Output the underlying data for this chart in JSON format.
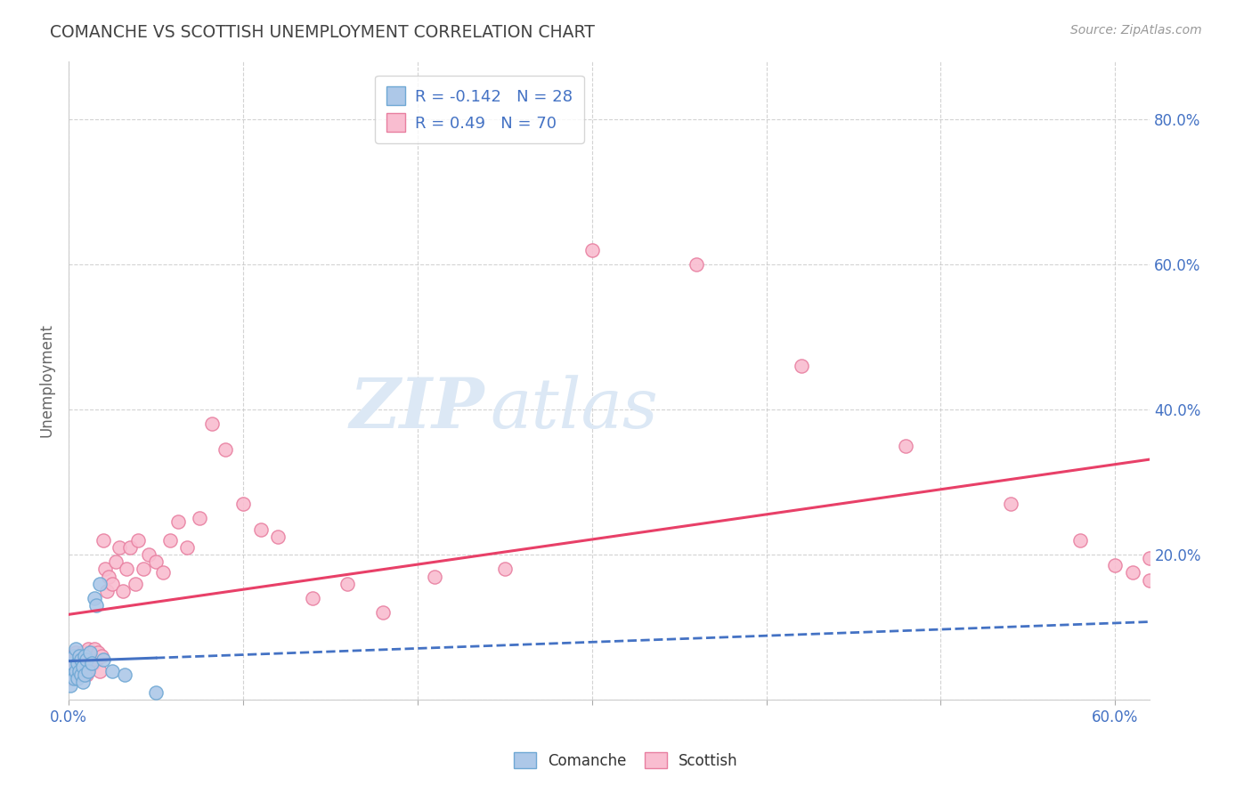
{
  "title": "COMANCHE VS SCOTTISH UNEMPLOYMENT CORRELATION CHART",
  "source": "Source: ZipAtlas.com",
  "ylabel": "Unemployment",
  "x_tick_labels": [
    "0.0%",
    "",
    "",
    "",
    "",
    "",
    "60.0%"
  ],
  "y_tick_labels_right": [
    "",
    "20.0%",
    "40.0%",
    "60.0%",
    "80.0%"
  ],
  "xlim": [
    0.0,
    0.62
  ],
  "ylim": [
    0.0,
    0.88
  ],
  "comanche_R": -0.142,
  "comanche_N": 28,
  "scottish_R": 0.49,
  "scottish_N": 70,
  "comanche_color": "#adc8e8",
  "comanche_edge": "#6fa8d4",
  "scottish_color": "#f9bdd0",
  "scottish_edge": "#e87fa0",
  "comanche_line_color": "#4472c4",
  "scottish_line_color": "#e84068",
  "background_color": "#ffffff",
  "grid_color": "#c8c8c8",
  "title_color": "#444444",
  "axis_label_color": "#4472c4",
  "watermark_zip": "ZIP",
  "watermark_atlas": "atlas",
  "watermark_color": "#dce8f5",
  "comanche_x": [
    0.001,
    0.002,
    0.002,
    0.003,
    0.003,
    0.004,
    0.004,
    0.005,
    0.005,
    0.006,
    0.006,
    0.007,
    0.007,
    0.008,
    0.008,
    0.009,
    0.009,
    0.01,
    0.011,
    0.012,
    0.013,
    0.015,
    0.016,
    0.018,
    0.02,
    0.025,
    0.032,
    0.05
  ],
  "comanche_y": [
    0.02,
    0.035,
    0.05,
    0.03,
    0.06,
    0.04,
    0.07,
    0.05,
    0.03,
    0.04,
    0.06,
    0.035,
    0.055,
    0.025,
    0.045,
    0.06,
    0.035,
    0.055,
    0.04,
    0.065,
    0.05,
    0.14,
    0.13,
    0.16,
    0.055,
    0.04,
    0.035,
    0.01
  ],
  "scottish_x": [
    0.001,
    0.001,
    0.002,
    0.002,
    0.003,
    0.003,
    0.004,
    0.004,
    0.005,
    0.005,
    0.006,
    0.006,
    0.007,
    0.007,
    0.008,
    0.008,
    0.009,
    0.009,
    0.01,
    0.01,
    0.011,
    0.011,
    0.012,
    0.013,
    0.014,
    0.015,
    0.016,
    0.017,
    0.018,
    0.019,
    0.02,
    0.021,
    0.022,
    0.023,
    0.025,
    0.027,
    0.029,
    0.031,
    0.033,
    0.035,
    0.038,
    0.04,
    0.043,
    0.046,
    0.05,
    0.054,
    0.058,
    0.063,
    0.068,
    0.075,
    0.082,
    0.09,
    0.1,
    0.11,
    0.12,
    0.14,
    0.16,
    0.18,
    0.21,
    0.25,
    0.3,
    0.36,
    0.42,
    0.48,
    0.54,
    0.58,
    0.6,
    0.61,
    0.62,
    0.62
  ],
  "scottish_y": [
    0.03,
    0.05,
    0.04,
    0.06,
    0.035,
    0.055,
    0.04,
    0.065,
    0.05,
    0.035,
    0.055,
    0.04,
    0.06,
    0.035,
    0.045,
    0.065,
    0.04,
    0.055,
    0.035,
    0.065,
    0.05,
    0.07,
    0.045,
    0.06,
    0.05,
    0.07,
    0.055,
    0.065,
    0.04,
    0.06,
    0.22,
    0.18,
    0.15,
    0.17,
    0.16,
    0.19,
    0.21,
    0.15,
    0.18,
    0.21,
    0.16,
    0.22,
    0.18,
    0.2,
    0.19,
    0.175,
    0.22,
    0.245,
    0.21,
    0.25,
    0.38,
    0.345,
    0.27,
    0.235,
    0.225,
    0.14,
    0.16,
    0.12,
    0.17,
    0.18,
    0.62,
    0.6,
    0.46,
    0.35,
    0.27,
    0.22,
    0.185,
    0.175,
    0.165,
    0.195
  ]
}
